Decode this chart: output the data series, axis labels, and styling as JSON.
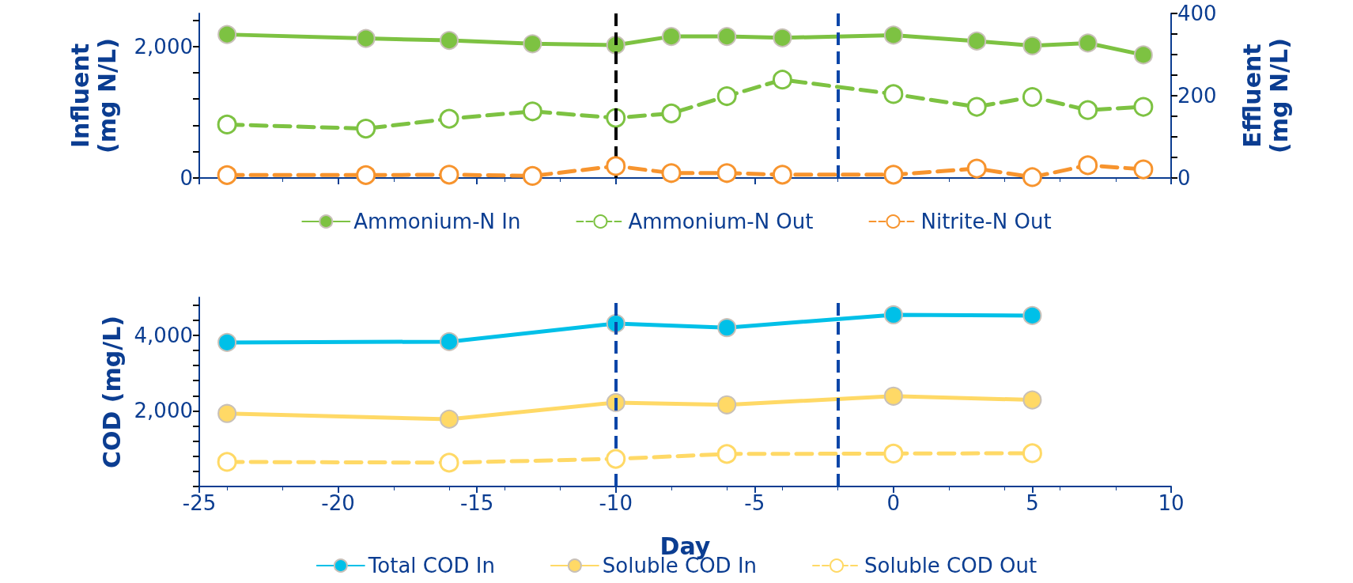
{
  "chart_data": [
    {
      "type": "line",
      "ylabel": "Influent\n(mg N/L)",
      "y2label": "Effluent\n(mg N/L)",
      "xlim": [
        -25,
        10
      ],
      "xticks": [
        {
          "value": -25,
          "label": null
        },
        {
          "value": -20,
          "label": null
        },
        {
          "value": -15,
          "label": null
        },
        {
          "value": -10,
          "label": null
        },
        {
          "value": -5,
          "label": null
        },
        {
          "value": 0,
          "label": null
        },
        {
          "value": 5,
          "label": null
        },
        {
          "value": 10,
          "label": null
        }
      ],
      "ylim": [
        0,
        2500
      ],
      "yticks": [
        0,
        {
          "value": 400,
          "label": null
        },
        {
          "value": 800,
          "label": null
        },
        {
          "value": 1200,
          "label": null
        },
        {
          "value": 1600,
          "label": null
        },
        {
          "value": 2000,
          "label": "2,000"
        },
        {
          "value": 2400,
          "label": null
        }
      ],
      "y2lim": [
        0,
        400
      ],
      "y2ticks": [
        0,
        {
          "value": 50,
          "label": null
        },
        {
          "value": 100,
          "label": null
        },
        {
          "value": 150,
          "label": null
        },
        200,
        {
          "value": 250,
          "label": null
        },
        {
          "value": 300,
          "label": null
        },
        {
          "value": 350,
          "label": null
        },
        400
      ],
      "tick_labels": "y",
      "legend": "bottom",
      "marker": "circle",
      "x": [
        -24,
        -19,
        -16,
        -13,
        -10,
        -8,
        -6,
        -4,
        0,
        3,
        5,
        7,
        9
      ],
      "series": [
        {
          "name": "Ammonium-N In",
          "color": "#7dc242",
          "line_style": "solid",
          "values": [
            2180,
            2120,
            2090,
            2040,
            2020,
            2150,
            2150,
            2130,
            2170,
            2080,
            2010,
            2050,
            1870
          ]
        },
        {
          "name": "Ammonium-N Out",
          "color": "#7dc242",
          "line_style": "dashed",
          "axis": "y2",
          "values": [
            130,
            120,
            144,
            162,
            146,
            157,
            199,
            239,
            204,
            173,
            197,
            165,
            173
          ]
        },
        {
          "name": "Nitrite-N Out",
          "color": "#f7942e",
          "line_style": "dashed",
          "axis": "y2",
          "values": [
            7,
            7,
            8,
            5,
            29,
            12,
            12,
            8,
            8,
            23,
            2,
            31,
            21
          ]
        }
      ],
      "ref_lines": [
        {
          "axis": "x",
          "value": -10,
          "color": "#000000",
          "line_style": "dashed"
        },
        {
          "axis": "x",
          "value": -2,
          "color": "#0b46a8",
          "line_style": "dashed"
        }
      ]
    },
    {
      "type": "line",
      "xlabel": "Day",
      "ylabel": "COD (mg/L)",
      "xlim": [
        -25,
        10
      ],
      "xticks": [
        -25,
        -20,
        -15,
        -10,
        -5,
        0,
        5,
        10
      ],
      "ylim": [
        0,
        5000
      ],
      "yticks": [
        {
          "value": 0,
          "label": null
        },
        {
          "value": 400,
          "label": null
        },
        {
          "value": 800,
          "label": null
        },
        {
          "value": 1200,
          "label": null
        },
        {
          "value": 1600,
          "label": null
        },
        {
          "value": 2000,
          "label": "2,000"
        },
        {
          "value": 2400,
          "label": null
        },
        {
          "value": 2800,
          "label": null
        },
        {
          "value": 3200,
          "label": null
        },
        {
          "value": 3600,
          "label": null
        },
        {
          "value": 4000,
          "label": "4,000"
        },
        {
          "value": 4400,
          "label": null
        },
        {
          "value": 4800,
          "label": null
        }
      ],
      "legend": "bottom",
      "marker": "circle",
      "x": [
        -24,
        -16,
        -10,
        -6,
        0,
        5
      ],
      "series": [
        {
          "name": "Total COD In",
          "color": "#00c0e8",
          "line_style": "solid",
          "values": [
            3810,
            3830,
            4310,
            4200,
            4540,
            4520
          ]
        },
        {
          "name": "Soluble COD In",
          "color": "#ffd966",
          "line_style": "solid",
          "values": [
            1930,
            1780,
            2220,
            2160,
            2390,
            2290
          ]
        },
        {
          "name": "Soluble COD Out",
          "color": "#ffd966",
          "line_style": "dashed",
          "values": [
            650,
            630,
            730,
            860,
            870,
            880
          ]
        }
      ],
      "ref_lines": [
        {
          "axis": "x",
          "value": -10,
          "color": "#0b46a8",
          "line_style": "dashed"
        },
        {
          "axis": "x",
          "value": -2,
          "color": "#0b46a8",
          "line_style": "dashed"
        }
      ]
    }
  ]
}
